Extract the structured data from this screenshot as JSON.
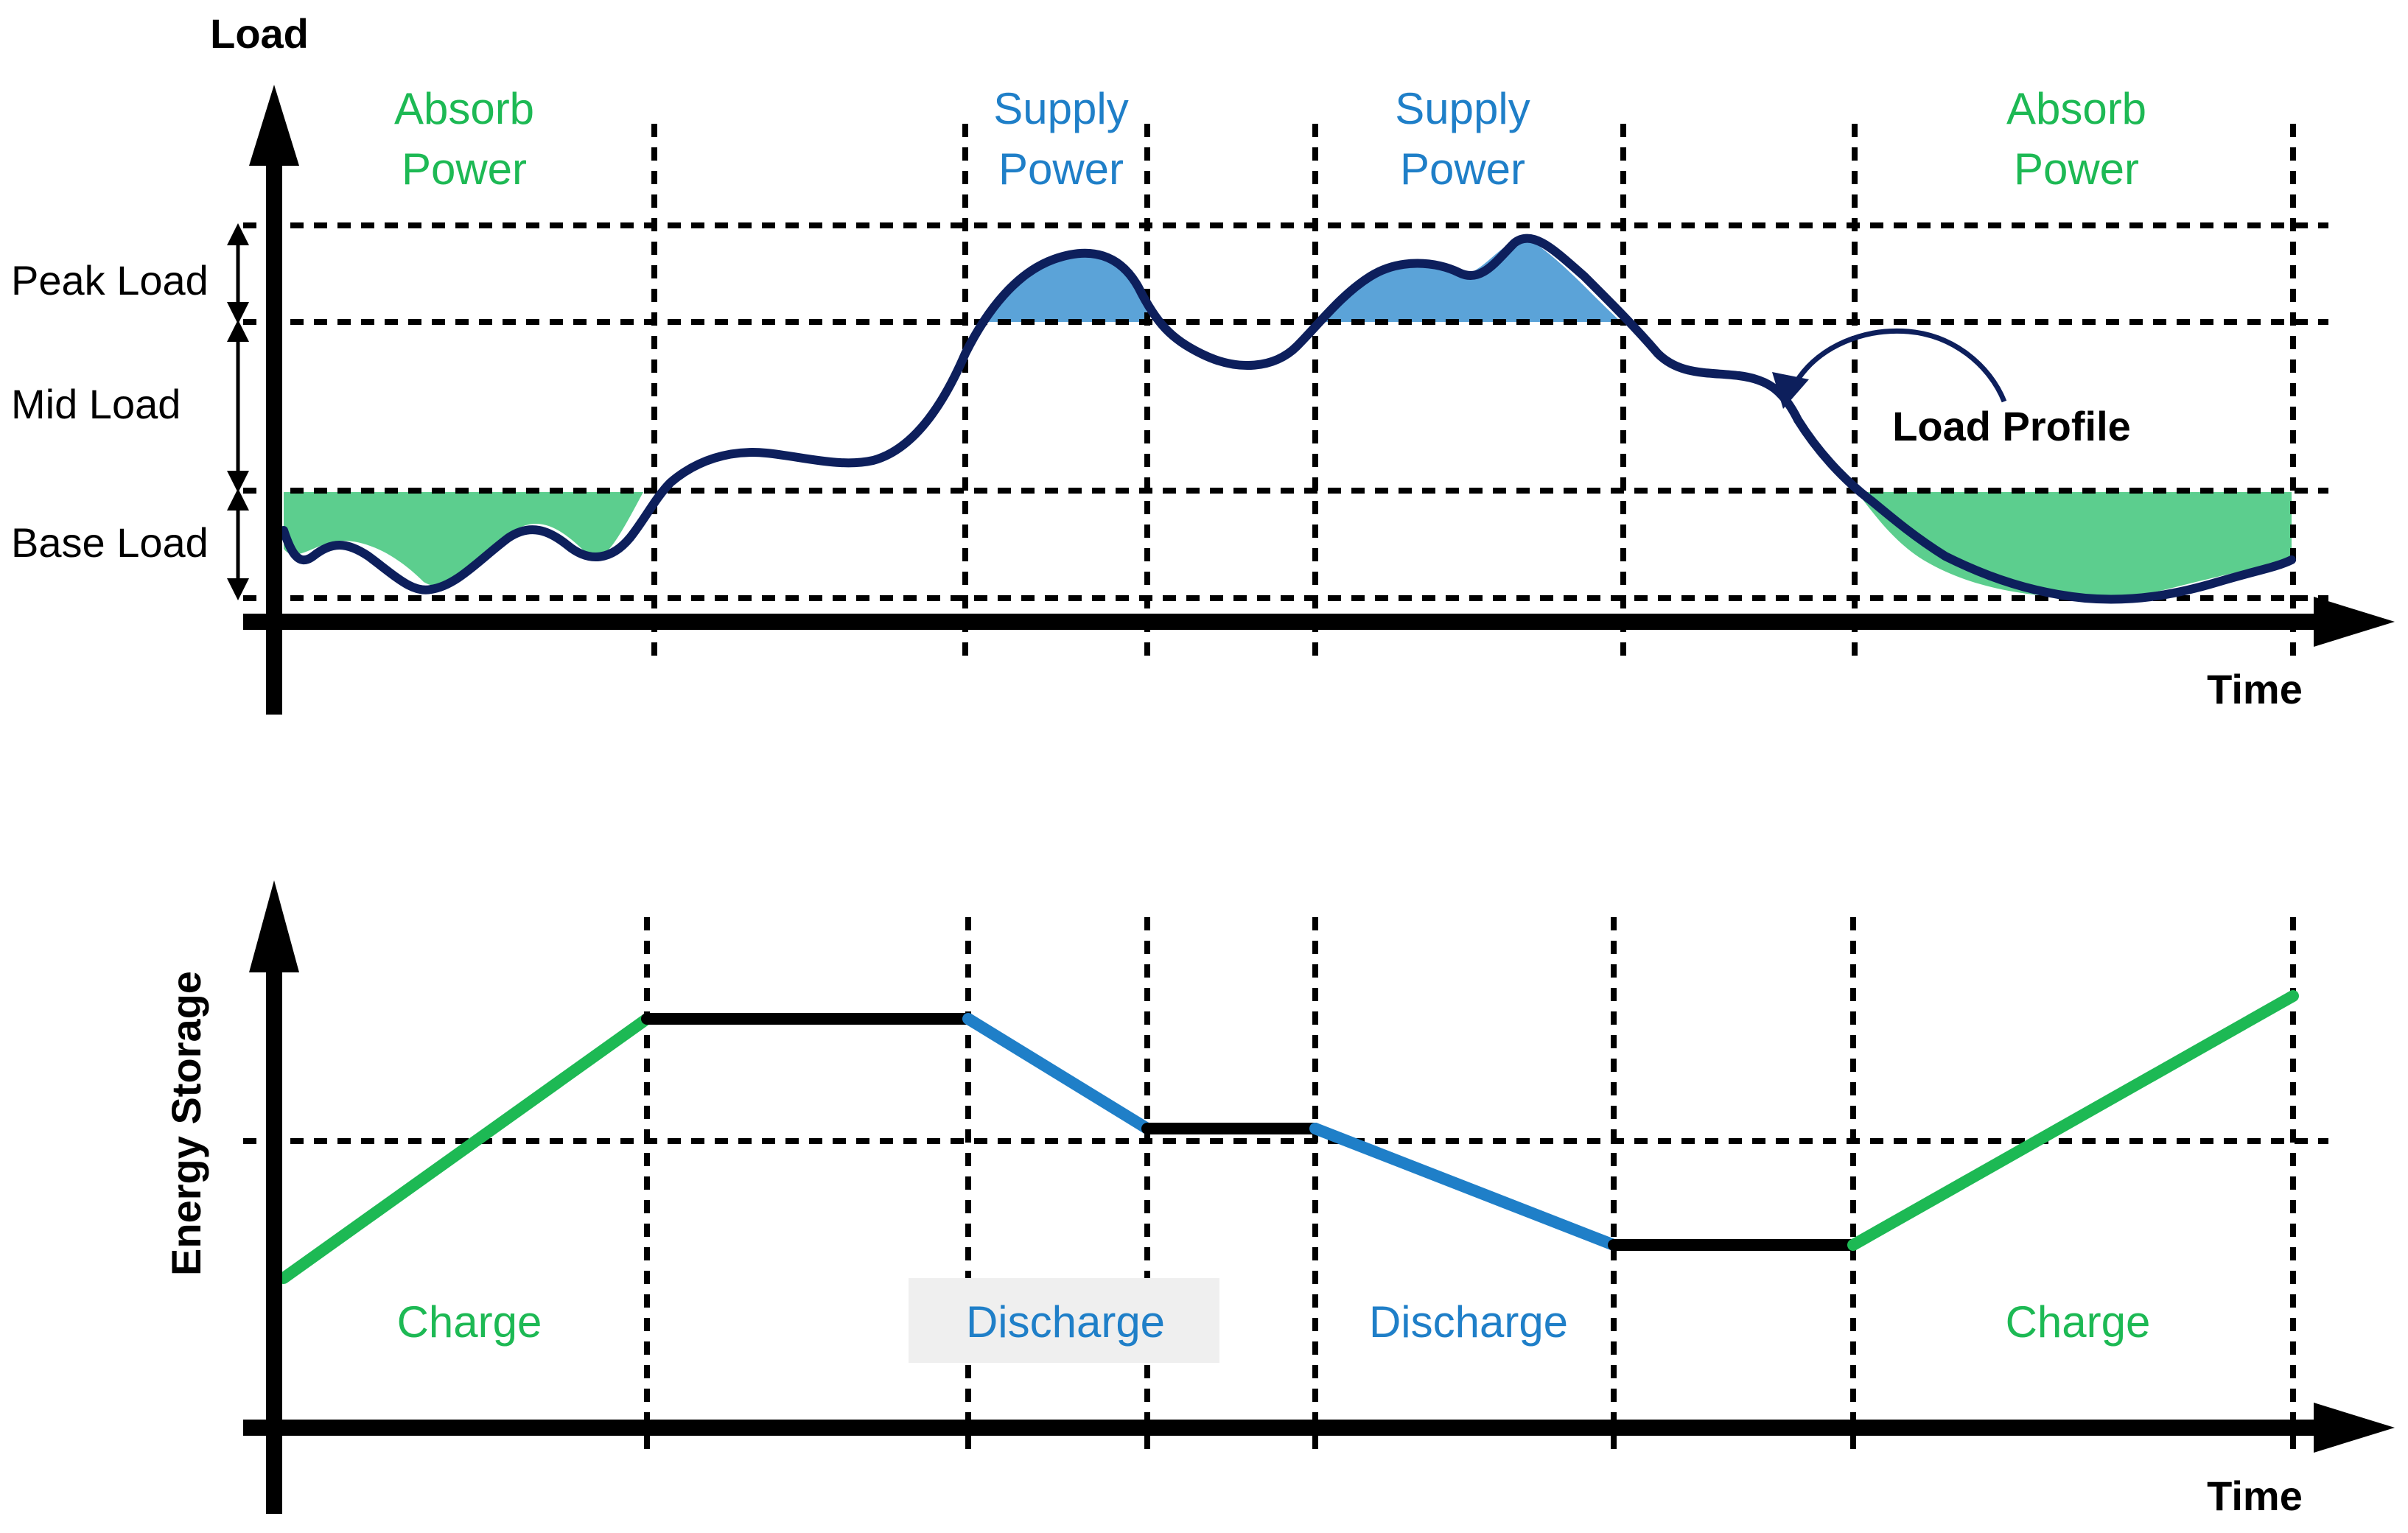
{
  "top_panel": {
    "y_axis_label": "Load",
    "x_axis_label": "Time",
    "levels": [
      "Peak Load",
      "Mid Load",
      "Base Load"
    ],
    "regions": [
      {
        "line1": "Absorb",
        "line2": "Power",
        "color": "#1db954"
      },
      {
        "line1": "Supply",
        "line2": "Power",
        "color": "#1f7fc8"
      },
      {
        "line1": "Supply",
        "line2": "Power",
        "color": "#1f7fc8"
      },
      {
        "line1": "Absorb",
        "line2": "Power",
        "color": "#1db954"
      }
    ],
    "curve_label": "Load Profile",
    "curve_color": "#0d1f5c",
    "absorb_fill": "#5cce8e",
    "supply_fill": "#5ba3d8"
  },
  "bottom_panel": {
    "y_axis_label": "Energy Storage",
    "x_axis_label": "Time",
    "phases": [
      {
        "label": "Charge",
        "color": "#1db954"
      },
      {
        "label": "Discharge",
        "color": "#1f7fc8"
      },
      {
        "label": "Discharge",
        "color": "#1f7fc8"
      },
      {
        "label": "Charge",
        "color": "#1db954"
      }
    ],
    "charge_color": "#1db954",
    "discharge_color": "#1f7fc8",
    "idle_color": "#000000"
  }
}
